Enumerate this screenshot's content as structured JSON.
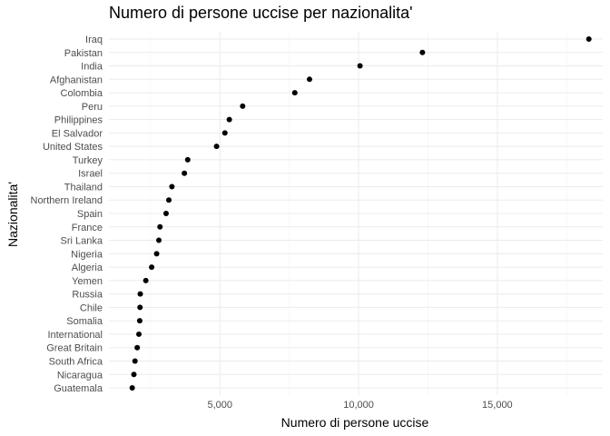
{
  "chart_data": {
    "type": "scatter",
    "title": "Numero di persone uccise per nazionalita'",
    "xlabel": "Numero di persone uccise",
    "ylabel": "Nazionalita'",
    "xlim": [
      1000,
      18800
    ],
    "x_ticks": [
      5000,
      10000,
      15000
    ],
    "x_tick_labels": [
      "5,000",
      "10,000",
      "15,000"
    ],
    "grid": true,
    "point_color": "#000000",
    "categories": [
      "Iraq",
      "Pakistan",
      "India",
      "Afghanistan",
      "Colombia",
      "Peru",
      "Philippines",
      "El Salvador",
      "United States",
      "Turkey",
      "Israel",
      "Thailand",
      "Northern Ireland",
      "Spain",
      "France",
      "Sri Lanka",
      "Nigeria",
      "Algeria",
      "Yemen",
      "Russia",
      "Chile",
      "Somalia",
      "International",
      "Great Britain",
      "South Africa",
      "Nicaragua",
      "Guatemala"
    ],
    "values": [
      18300,
      12300,
      10050,
      8230,
      7700,
      5820,
      5340,
      5180,
      4880,
      3840,
      3720,
      3270,
      3160,
      3060,
      2840,
      2800,
      2720,
      2540,
      2330,
      2130,
      2120,
      2110,
      2080,
      2020,
      1940,
      1900,
      1840
    ]
  }
}
